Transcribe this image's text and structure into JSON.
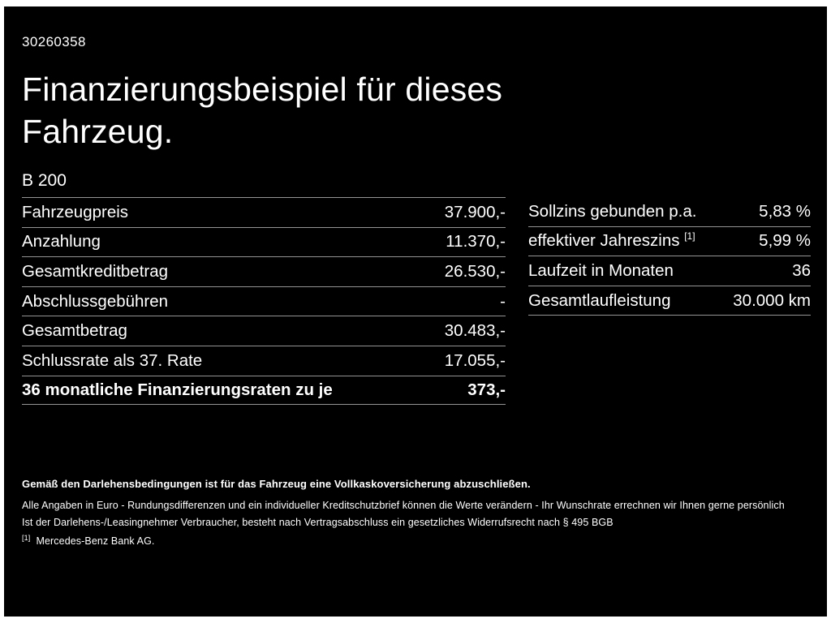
{
  "header": {
    "id_number": "30260358",
    "title_line1": "Finanzierungsbeispiel für dieses",
    "title_line2": "Fahrzeug.",
    "model": "B 200"
  },
  "left_table": {
    "rows": [
      {
        "label": "Fahrzeugpreis",
        "value": "37.900,-"
      },
      {
        "label": "Anzahlung",
        "value": "11.370,-"
      },
      {
        "label": "Gesamtkreditbetrag",
        "value": "26.530,-"
      },
      {
        "label": "Abschlussgebühren",
        "value": "-"
      },
      {
        "label": "Gesamtbetrag",
        "value": "30.483,-"
      },
      {
        "label": "Schlussrate als 37. Rate",
        "value": "17.055,-"
      },
      {
        "label": "36 monatliche Finanzierungsraten zu je",
        "value": "373,-"
      }
    ]
  },
  "right_table": {
    "rows": [
      {
        "label": "Sollzins gebunden p.a.",
        "value": "5,83 %"
      },
      {
        "label": "effektiver Jahreszins",
        "label_sup": "[1]",
        "value": "5,99 %"
      },
      {
        "label": "Laufzeit in Monaten",
        "value": "36"
      },
      {
        "label": "Gesamtlaufleistung",
        "value": "30.000 km"
      }
    ]
  },
  "footer": {
    "line1": "Gemäß den Darlehensbedingungen ist für das Fahrzeug eine Vollkaskoversicherung abzuschließen.",
    "line2": "Alle Angaben in Euro - Rundungsdifferenzen und ein individueller Kreditschutzbrief können die Werte verändern - Ihr Wunschrate errechnen wir Ihnen gerne persönlich",
    "line3": "Ist der Darlehens-/Leasingnehmer Verbraucher, besteht nach Vertragsabschluss ein gesetzliches Widerrufsrecht nach § 495 BGB",
    "footnote_marker": "[1]",
    "footnote_text": "Mercedes-Benz Bank AG."
  },
  "colors": {
    "background": "#000000",
    "text": "#ffffff",
    "divider": "#949494",
    "frame": "#ffffff"
  }
}
